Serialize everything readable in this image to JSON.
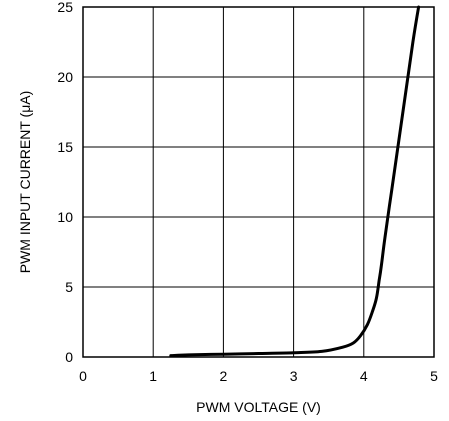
{
  "chart_data": {
    "type": "line",
    "title": "",
    "xlabel": "PWM VOLTAGE (V)",
    "ylabel": "PWM INPUT CURRENT (μA)",
    "xlim": [
      0,
      5
    ],
    "ylim": [
      0,
      25
    ],
    "x_ticks": [
      "0",
      "1",
      "2",
      "3",
      "4",
      "5"
    ],
    "y_ticks": [
      "0",
      "5",
      "10",
      "15",
      "20",
      "25"
    ],
    "grid": true,
    "series": [
      {
        "color": "#000000",
        "x": [
          1.25,
          1.5,
          2.0,
          2.5,
          3.0,
          3.4,
          3.7,
          3.85,
          3.95,
          4.05,
          4.12,
          4.18,
          4.22,
          4.25,
          4.3,
          4.4,
          4.5,
          4.6,
          4.7,
          4.78
        ],
        "y": [
          0.1,
          0.15,
          0.2,
          0.25,
          0.3,
          0.4,
          0.7,
          1.0,
          1.5,
          2.3,
          3.2,
          4.2,
          5.5,
          6.5,
          8.5,
          12.0,
          15.5,
          19.0,
          22.5,
          25.0
        ]
      }
    ]
  }
}
